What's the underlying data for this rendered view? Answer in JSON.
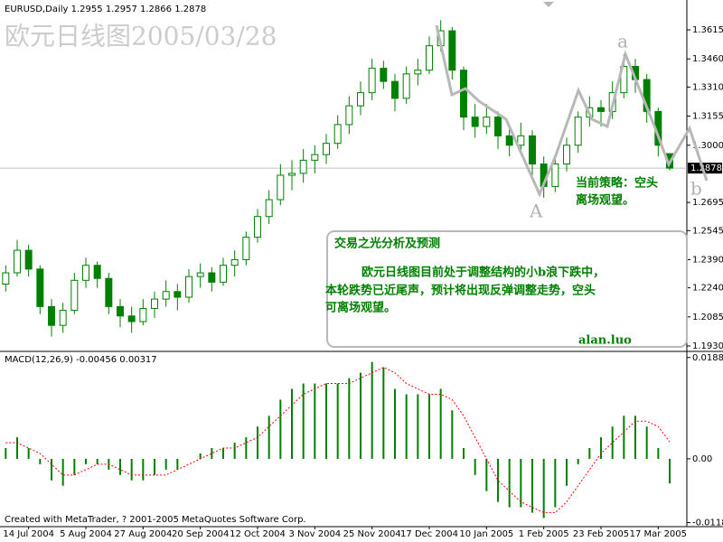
{
  "chart_data": {
    "type": "candlestick",
    "symbol_label": "EURUSD,Daily",
    "title": "欧元日线图2005/03/28",
    "categories": [
      null,
      null,
      "14 Jul 2004",
      null,
      null,
      null,
      null,
      "5 Aug 2004",
      null,
      null,
      null,
      null,
      "27 Aug 2004",
      null,
      null,
      null,
      null,
      "20 Sep 2004",
      null,
      null,
      null,
      null,
      "12 Oct 2004",
      null,
      null,
      null,
      null,
      "3 Nov 2004",
      null,
      null,
      null,
      null,
      "25 Nov 2004",
      null,
      null,
      null,
      null,
      "17 Dec 2004",
      null,
      null,
      null,
      null,
      "10 Jan 2005",
      null,
      null,
      null,
      null,
      "1 Feb 2005",
      null,
      null,
      null,
      null,
      "23 Feb 2005",
      null,
      null,
      null,
      null,
      "17 Mar 2005",
      null
    ],
    "candles": [
      [
        1.226,
        1.236,
        1.222,
        1.232
      ],
      [
        1.232,
        1.2495,
        1.23,
        1.244
      ],
      [
        1.244,
        1.247,
        1.23,
        1.234
      ],
      [
        1.234,
        1.236,
        1.21,
        1.214
      ],
      [
        1.214,
        1.218,
        1.198,
        1.204
      ],
      [
        1.204,
        1.216,
        1.2,
        1.212
      ],
      [
        1.212,
        1.232,
        1.21,
        1.228
      ],
      [
        1.228,
        1.24,
        1.224,
        1.236
      ],
      [
        1.236,
        1.238,
        1.224,
        1.229
      ],
      [
        1.229,
        1.232,
        1.21,
        1.214
      ],
      [
        1.214,
        1.218,
        1.203,
        1.209
      ],
      [
        1.209,
        1.214,
        1.2,
        1.206
      ],
      [
        1.206,
        1.218,
        1.204,
        1.213
      ],
      [
        1.213,
        1.222,
        1.208,
        1.218
      ],
      [
        1.218,
        1.228,
        1.214,
        1.222
      ],
      [
        1.222,
        1.226,
        1.212,
        1.219
      ],
      [
        1.219,
        1.234,
        1.216,
        1.23
      ],
      [
        1.23,
        1.237,
        1.224,
        1.232
      ],
      [
        1.232,
        1.235,
        1.222,
        1.227
      ],
      [
        1.227,
        1.24,
        1.225,
        1.236
      ],
      [
        1.236,
        1.244,
        1.23,
        1.239
      ],
      [
        1.239,
        1.254,
        1.236,
        1.251
      ],
      [
        1.251,
        1.266,
        1.248,
        1.262
      ],
      [
        1.262,
        1.276,
        1.258,
        1.271
      ],
      [
        1.271,
        1.29,
        1.268,
        1.284
      ],
      [
        1.284,
        1.292,
        1.276,
        1.285
      ],
      [
        1.285,
        1.298,
        1.28,
        1.292
      ],
      [
        1.292,
        1.3,
        1.285,
        1.295
      ],
      [
        1.295,
        1.306,
        1.29,
        1.301
      ],
      [
        1.301,
        1.316,
        1.298,
        1.311
      ],
      [
        1.311,
        1.326,
        1.306,
        1.321
      ],
      [
        1.321,
        1.334,
        1.316,
        1.328
      ],
      [
        1.328,
        1.346,
        1.324,
        1.341
      ],
      [
        1.341,
        1.345,
        1.33,
        1.334
      ],
      [
        1.334,
        1.338,
        1.318,
        1.325
      ],
      [
        1.325,
        1.342,
        1.322,
        1.338
      ],
      [
        1.338,
        1.346,
        1.332,
        1.34
      ],
      [
        1.34,
        1.358,
        1.338,
        1.353
      ],
      [
        1.353,
        1.3666,
        1.35,
        1.361
      ],
      [
        1.361,
        1.363,
        1.335,
        1.34
      ],
      [
        1.34,
        1.342,
        1.308,
        1.315
      ],
      [
        1.315,
        1.322,
        1.304,
        1.31
      ],
      [
        1.31,
        1.322,
        1.306,
        1.315
      ],
      [
        1.315,
        1.318,
        1.298,
        1.305
      ],
      [
        1.305,
        1.31,
        1.294,
        1.3
      ],
      [
        1.3,
        1.312,
        1.296,
        1.305
      ],
      [
        1.305,
        1.308,
        1.284,
        1.29
      ],
      [
        1.29,
        1.294,
        1.272,
        1.278
      ],
      [
        1.278,
        1.294,
        1.275,
        1.29
      ],
      [
        1.29,
        1.304,
        1.286,
        1.3
      ],
      [
        1.3,
        1.318,
        1.296,
        1.315
      ],
      [
        1.315,
        1.326,
        1.31,
        1.32
      ],
      [
        1.32,
        1.324,
        1.31,
        1.318
      ],
      [
        1.318,
        1.334,
        1.314,
        1.328
      ],
      [
        1.328,
        1.3485,
        1.325,
        1.342
      ],
      [
        1.342,
        1.346,
        1.328,
        1.335
      ],
      [
        1.335,
        1.338,
        1.312,
        1.318
      ],
      [
        1.318,
        1.32,
        1.294,
        1.3
      ],
      [
        1.2955,
        1.2957,
        1.2866,
        1.2878
      ]
    ],
    "up_color": "#ffffff",
    "down_color": "#008000",
    "outline_color": "#008000",
    "ylim": [
      1.1906,
      1.3774
    ],
    "yticks": [
      1.3615,
      {
        "value": 1.346,
        "label": "1.3460"
      },
      {
        "value": 1.331,
        "label": "1.3310"
      },
      1.3155,
      {
        "value": 1.3,
        "label": "1.3000"
      },
      1.2695,
      1.2545,
      {
        "value": 1.239,
        "label": "1.2390"
      },
      {
        "value": 1.224,
        "label": "1.2240"
      },
      1.2085,
      {
        "value": 1.193,
        "label": "1.1930"
      }
    ],
    "annotations": {
      "wave_a": "a",
      "wave_A": "A",
      "wave_b": "b",
      "strategy_1": "当前策略：空头",
      "strategy_2": "离场观望。",
      "box_title": "交易之光分析及预测",
      "box_line_1": "欧元日线图目前处于调整结构的小b浪下跌中，",
      "box_line_2": "本轮跌势已近尾声，预计将出现反弹调整走势，空头",
      "box_line_3": "可离场观望。",
      "author": "alan.luo"
    },
    "macd": {
      "label": "MACD(12,26,9)",
      "histogram": [
        0.002,
        0.004,
        0.002,
        -0.001,
        -0.004,
        -0.005,
        -0.003,
        -0.001,
        -0.001,
        -0.002,
        -0.003,
        -0.004,
        -0.004,
        -0.003,
        -0.002,
        -0.002,
        0.0,
        0.001,
        0.002,
        0.002,
        0.003,
        0.004,
        0.006,
        0.008,
        0.011,
        0.013,
        0.014,
        0.014,
        0.014,
        0.014,
        0.015,
        0.016,
        0.018,
        0.017,
        0.013,
        0.012,
        0.012,
        0.012,
        0.013,
        0.009,
        0.002,
        -0.003,
        -0.006,
        -0.008,
        -0.009,
        -0.009,
        -0.01,
        -0.011,
        -0.009,
        -0.005,
        -0.001,
        0.002,
        0.004,
        0.006,
        0.008,
        0.008,
        0.006,
        0.002,
        -0.00456
      ],
      "signal": [
        0.003,
        0.003,
        0.002,
        0.001,
        -0.001,
        -0.003,
        -0.003,
        -0.002,
        -0.001,
        -0.001,
        -0.002,
        -0.003,
        -0.003,
        -0.003,
        -0.003,
        -0.002,
        -0.001,
        0.0,
        0.001,
        0.002,
        0.002,
        0.003,
        0.004,
        0.006,
        0.008,
        0.01,
        0.012,
        0.013,
        0.014,
        0.014,
        0.014,
        0.015,
        0.016,
        0.017,
        0.016,
        0.014,
        0.013,
        0.012,
        0.012,
        0.011,
        0.008,
        0.004,
        0.0,
        -0.004,
        -0.006,
        -0.008,
        -0.009,
        -0.01,
        -0.01,
        -0.008,
        -0.005,
        -0.002,
        0.001,
        0.003,
        0.005,
        0.007,
        0.007,
        0.006,
        0.00317
      ],
      "hist_color": "#008000",
      "signal_color": "#ff0000",
      "ylim": [
        -0.0126,
        0.0198
      ],
      "yticks": [
        0.01883,
        {
          "value": 0,
          "label": "0.00"
        },
        -0.01186
      ]
    },
    "footer": "Created with MetaTrader, ? 2001-2005 MetaQuotes Software Corp."
  }
}
